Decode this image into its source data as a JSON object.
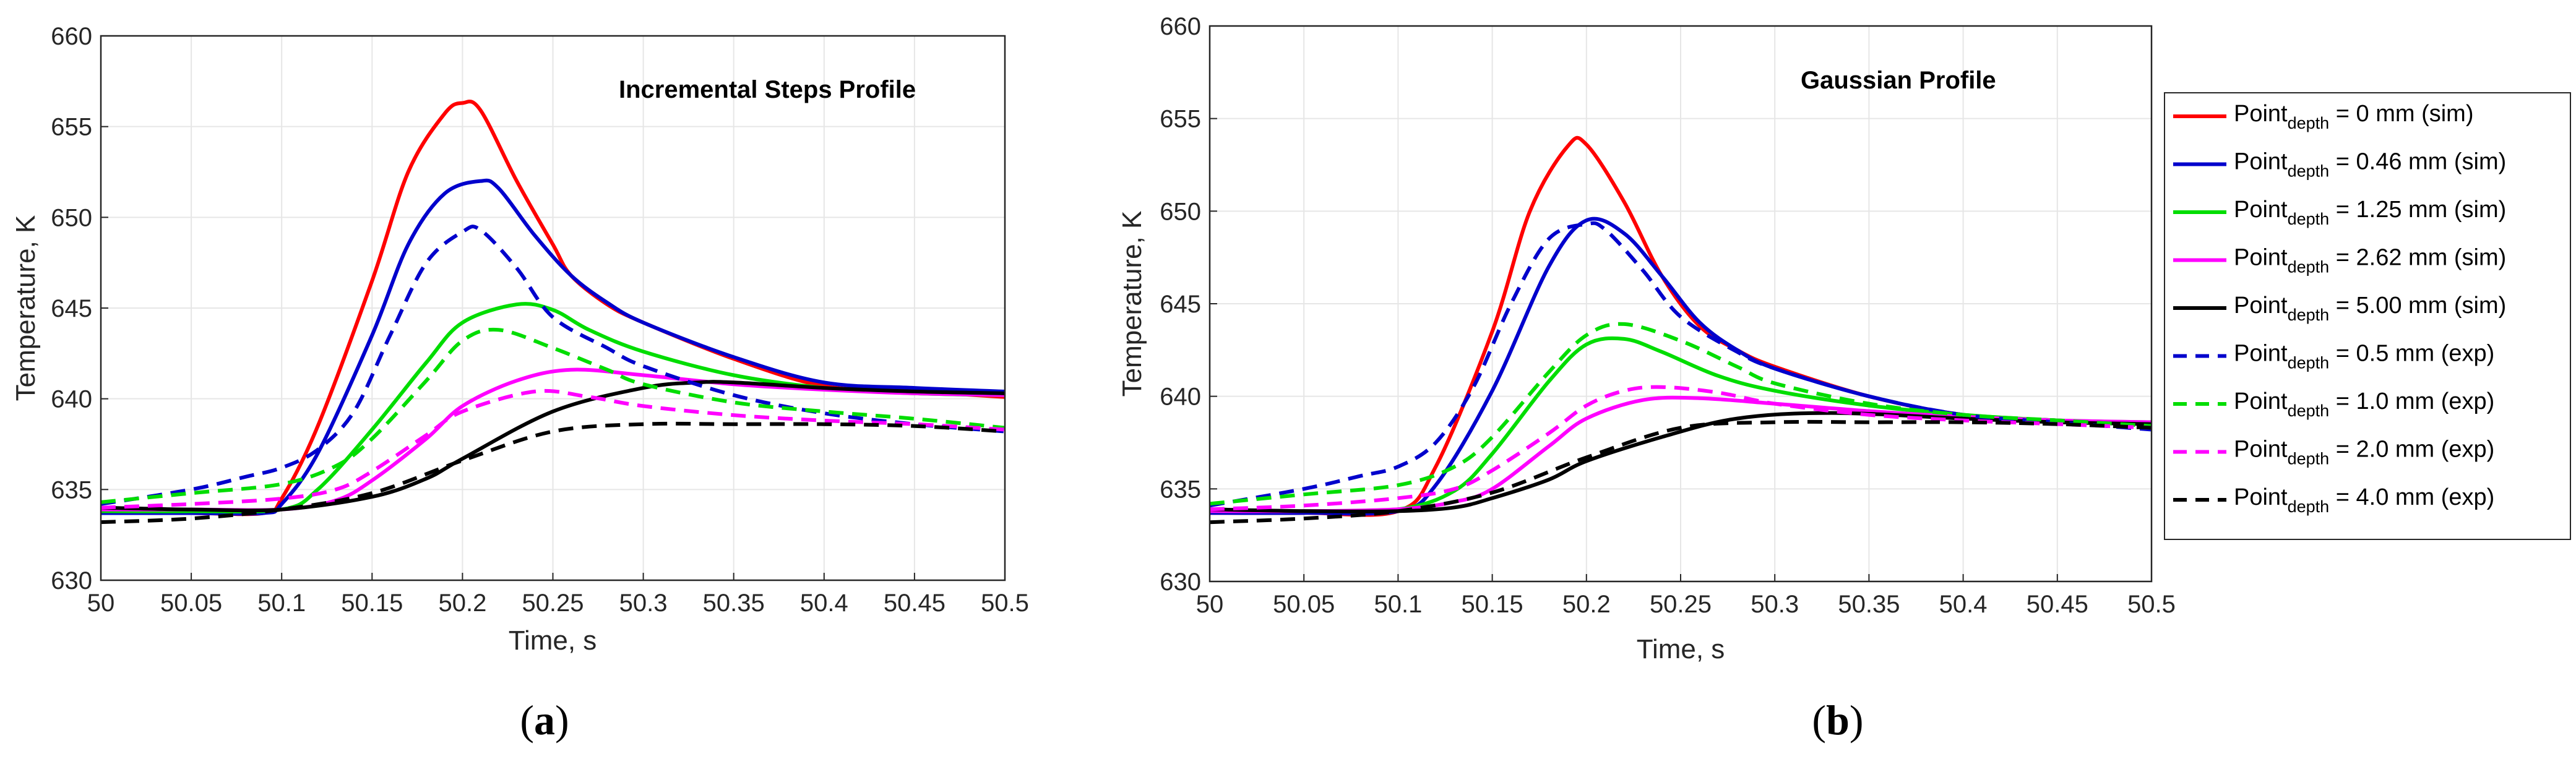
{
  "colors": {
    "red": "#ff0000",
    "blue": "#0000cc",
    "green": "#00dd00",
    "magenta": "#ff00ff",
    "black": "#000000",
    "grid": "#e6e6e6",
    "axis": "#262626"
  },
  "legend": {
    "prefix": "Point",
    "sub": "depth",
    "items": [
      {
        "suffix": " = 0 mm (sim)",
        "color": "#ff0000",
        "dash": false
      },
      {
        "suffix": " = 0.46 mm (sim)",
        "color": "#0000cc",
        "dash": false
      },
      {
        "suffix": " = 1.25 mm (sim)",
        "color": "#00dd00",
        "dash": false
      },
      {
        "suffix": " = 2.62 mm (sim)",
        "color": "#ff00ff",
        "dash": false
      },
      {
        "suffix": " = 5.00 mm (sim)",
        "color": "#000000",
        "dash": false
      },
      {
        "suffix": " = 0.5 mm (exp)",
        "color": "#0000cc",
        "dash": true
      },
      {
        "suffix": " = 1.0 mm (exp)",
        "color": "#00dd00",
        "dash": true
      },
      {
        "suffix": " = 2.0 mm (exp)",
        "color": "#ff00ff",
        "dash": true
      },
      {
        "suffix": " = 4.0 mm (exp)",
        "color": "#000000",
        "dash": true
      }
    ]
  },
  "chart_data": [
    {
      "type": "line",
      "panel": "a",
      "caption_open": "(",
      "caption_letter": "a",
      "caption_close": ")",
      "title": "Incremental Steps Profile",
      "xlabel": "Time, s",
      "ylabel": "Temperature, K",
      "xlim": [
        50,
        50.5
      ],
      "ylim": [
        630,
        660
      ],
      "xticks": [
        "50",
        "50.05",
        "50.1",
        "50.15",
        "50.2",
        "50.25",
        "50.3",
        "50.35",
        "50.4",
        "50.45",
        "50.5"
      ],
      "yticks": [
        "630",
        "635",
        "640",
        "645",
        "650",
        "655",
        "660"
      ],
      "grid": true,
      "series": [
        {
          "name": "Point_depth = 0 mm (sim)",
          "color": "#ff0000",
          "dash": false,
          "x": [
            50,
            50.05,
            50.09,
            50.1,
            50.12,
            50.15,
            50.17,
            50.19,
            50.2,
            50.21,
            50.23,
            50.25,
            50.26,
            50.28,
            50.3,
            50.35,
            50.4,
            50.45,
            50.5
          ],
          "y": [
            633.7,
            633.7,
            633.7,
            634.5,
            638.5,
            646.5,
            652.5,
            655.7,
            656.3,
            655.9,
            652,
            648.5,
            646.8,
            645.2,
            644.2,
            642.2,
            640.7,
            640.4,
            640.1
          ]
        },
        {
          "name": "Point_depth = 0.46 mm (sim)",
          "color": "#0000cc",
          "dash": false,
          "x": [
            50,
            50.05,
            50.09,
            50.1,
            50.12,
            50.15,
            50.17,
            50.19,
            50.21,
            50.22,
            50.24,
            50.26,
            50.28,
            50.3,
            50.35,
            50.4,
            50.45,
            50.5
          ],
          "y": [
            633.7,
            633.7,
            633.7,
            634.2,
            637,
            643.5,
            648.5,
            651.3,
            652,
            651.6,
            649,
            646.8,
            645.3,
            644.2,
            642.3,
            640.9,
            640.6,
            640.4
          ]
        },
        {
          "name": "Point_depth = 1.25 mm (sim)",
          "color": "#00dd00",
          "dash": false,
          "x": [
            50,
            50.05,
            50.1,
            50.12,
            50.15,
            50.18,
            50.2,
            50.23,
            50.25,
            50.27,
            50.3,
            50.35,
            50.4,
            50.45,
            50.5
          ],
          "y": [
            633.8,
            633.8,
            633.9,
            635,
            638.3,
            642,
            644.2,
            645.2,
            644.9,
            643.8,
            642.6,
            641.3,
            640.6,
            640.3,
            640.2
          ]
        },
        {
          "name": "Point_depth = 2.62 mm (sim)",
          "color": "#ff00ff",
          "dash": false,
          "x": [
            50,
            50.05,
            50.1,
            50.13,
            50.15,
            50.18,
            50.2,
            50.23,
            50.26,
            50.3,
            50.35,
            50.4,
            50.45,
            50.5
          ],
          "y": [
            633.9,
            633.9,
            633.9,
            634.4,
            635.5,
            637.8,
            639.6,
            641,
            641.6,
            641.3,
            640.8,
            640.5,
            640.3,
            640.2
          ]
        },
        {
          "name": "Point_depth = 5.00 mm (sim)",
          "color": "#000000",
          "dash": false,
          "x": [
            50,
            50.05,
            50.1,
            50.15,
            50.18,
            50.2,
            50.25,
            50.3,
            50.33,
            50.35,
            50.4,
            50.45,
            50.5
          ],
          "y": [
            634,
            633.9,
            633.9,
            634.6,
            635.6,
            636.7,
            639.3,
            640.6,
            640.9,
            640.9,
            640.6,
            640.4,
            640.3
          ]
        },
        {
          "name": "Point_depth = 0.5 mm (exp)",
          "color": "#0000cc",
          "dash": true,
          "x": [
            50,
            50.05,
            50.08,
            50.1,
            50.12,
            50.14,
            50.16,
            50.18,
            50.2,
            50.21,
            50.23,
            50.25,
            50.28,
            50.3,
            50.35,
            50.4,
            50.45,
            50.5
          ],
          "y": [
            634.2,
            635,
            635.7,
            636.2,
            637.2,
            639.3,
            643.5,
            647.5,
            649.2,
            649.3,
            647.2,
            644.5,
            642.8,
            641.8,
            640.2,
            639.2,
            638.6,
            638.2
          ]
        },
        {
          "name": "Point_depth = 1.0 mm (exp)",
          "color": "#00dd00",
          "dash": true,
          "x": [
            50,
            50.05,
            50.1,
            50.13,
            50.15,
            50.18,
            50.2,
            50.22,
            50.25,
            50.28,
            50.3,
            50.35,
            50.4,
            50.45,
            50.5
          ],
          "y": [
            634.3,
            634.8,
            635.3,
            636.3,
            637.8,
            641,
            643.2,
            643.8,
            642.8,
            641.6,
            640.8,
            639.8,
            639.3,
            638.9,
            638.4
          ]
        },
        {
          "name": "Point_depth = 2.0 mm (exp)",
          "color": "#ff00ff",
          "dash": true,
          "x": [
            50,
            50.05,
            50.1,
            50.13,
            50.15,
            50.18,
            50.2,
            50.24,
            50.27,
            50.3,
            50.35,
            50.4,
            50.45,
            50.5
          ],
          "y": [
            634,
            634.2,
            634.5,
            635,
            636,
            638,
            639.3,
            640.4,
            640.1,
            639.6,
            639.1,
            638.8,
            638.6,
            638.3
          ]
        },
        {
          "name": "Point_depth = 4.0 mm (exp)",
          "color": "#000000",
          "dash": true,
          "x": [
            50,
            50.05,
            50.1,
            50.15,
            50.2,
            50.25,
            50.3,
            50.35,
            50.4,
            50.45,
            50.5
          ],
          "y": [
            633.2,
            633.4,
            633.9,
            634.8,
            636.6,
            638.2,
            638.6,
            638.6,
            638.6,
            638.5,
            638.2
          ]
        }
      ]
    },
    {
      "type": "line",
      "panel": "b",
      "caption_open": "(",
      "caption_letter": "b",
      "caption_close": ")",
      "title": "Gaussian Profile",
      "xlabel": "Time, s",
      "ylabel": "Temperature, K",
      "xlim": [
        50,
        50.5
      ],
      "ylim": [
        630,
        660
      ],
      "xticks": [
        "50",
        "50.05",
        "50.1",
        "50.15",
        "50.2",
        "50.25",
        "50.3",
        "50.35",
        "50.4",
        "50.45",
        "50.5"
      ],
      "yticks": [
        "630",
        "635",
        "640",
        "645",
        "650",
        "655",
        "660"
      ],
      "grid": true,
      "series": [
        {
          "name": "Point_depth = 0 mm (sim)",
          "color": "#ff0000",
          "dash": false,
          "x": [
            50,
            50.05,
            50.1,
            50.12,
            50.15,
            50.17,
            50.19,
            50.2,
            50.22,
            50.24,
            50.26,
            50.28,
            50.3,
            50.35,
            50.4,
            50.45,
            50.5
          ],
          "y": [
            633.7,
            633.7,
            633.8,
            636.2,
            643.5,
            650,
            653.5,
            653.6,
            650.5,
            646.5,
            643.8,
            642.5,
            641.6,
            640,
            639,
            638.7,
            638.5
          ]
        },
        {
          "name": "Point_depth = 0.46 mm (sim)",
          "color": "#0000cc",
          "dash": false,
          "x": [
            50,
            50.05,
            50.1,
            50.12,
            50.15,
            50.18,
            50.2,
            50.22,
            50.24,
            50.26,
            50.28,
            50.3,
            50.35,
            50.4,
            50.45,
            50.5
          ],
          "y": [
            633.7,
            633.7,
            633.8,
            635.2,
            640.3,
            647,
            649.5,
            648.8,
            646.5,
            644,
            642.5,
            641.5,
            640,
            639,
            638.7,
            638.5
          ]
        },
        {
          "name": "Point_depth = 1.25 mm (sim)",
          "color": "#00dd00",
          "dash": false,
          "x": [
            50,
            50.05,
            50.1,
            50.13,
            50.15,
            50.18,
            50.2,
            50.22,
            50.24,
            50.27,
            50.3,
            50.35,
            50.4,
            50.45,
            50.5
          ],
          "y": [
            633.8,
            633.8,
            633.9,
            634.9,
            636.9,
            640.8,
            642.8,
            643.1,
            642.4,
            641.1,
            640.3,
            639.5,
            639,
            638.7,
            638.6
          ]
        },
        {
          "name": "Point_depth = 2.62 mm (sim)",
          "color": "#ff00ff",
          "dash": false,
          "x": [
            50,
            50.05,
            50.1,
            50.13,
            50.15,
            50.18,
            50.2,
            50.23,
            50.26,
            50.3,
            50.35,
            50.4,
            50.45,
            50.5
          ],
          "y": [
            633.8,
            633.8,
            633.9,
            634.3,
            635,
            637.3,
            638.8,
            639.8,
            639.9,
            639.6,
            639.2,
            638.9,
            638.7,
            638.6
          ]
        },
        {
          "name": "Point_depth = 5.00 mm (sim)",
          "color": "#000000",
          "dash": false,
          "x": [
            50,
            50.05,
            50.1,
            50.13,
            50.15,
            50.18,
            50.2,
            50.24,
            50.28,
            50.33,
            50.4,
            50.45,
            50.5
          ],
          "y": [
            633.9,
            633.8,
            633.8,
            634,
            634.5,
            635.5,
            636.5,
            637.8,
            638.8,
            639.1,
            638.8,
            638.6,
            638.5
          ]
        },
        {
          "name": "Point_depth = 0.5 mm (exp)",
          "color": "#0000cc",
          "dash": true,
          "x": [
            50,
            50.05,
            50.08,
            50.1,
            50.12,
            50.14,
            50.16,
            50.18,
            50.2,
            50.21,
            50.23,
            50.25,
            50.28,
            50.3,
            50.35,
            50.4,
            50.45,
            50.5
          ],
          "y": [
            634.1,
            635,
            635.7,
            636.2,
            637.5,
            640.5,
            645,
            648.5,
            649.3,
            649,
            646.8,
            644.3,
            642.4,
            641.5,
            640,
            639,
            638.6,
            638.2
          ]
        },
        {
          "name": "Point_depth = 1.0 mm (exp)",
          "color": "#00dd00",
          "dash": true,
          "x": [
            50,
            50.05,
            50.1,
            50.13,
            50.15,
            50.18,
            50.2,
            50.22,
            50.25,
            50.28,
            50.3,
            50.35,
            50.4,
            50.45,
            50.5
          ],
          "y": [
            634.2,
            634.7,
            635.2,
            636.2,
            637.8,
            641.3,
            643.3,
            643.9,
            643,
            641.6,
            640.7,
            639.6,
            639,
            638.7,
            638.4
          ]
        },
        {
          "name": "Point_depth = 2.0 mm (exp)",
          "color": "#ff00ff",
          "dash": true,
          "x": [
            50,
            50.05,
            50.1,
            50.13,
            50.15,
            50.18,
            50.2,
            50.22,
            50.24,
            50.27,
            50.3,
            50.35,
            50.4,
            50.45,
            50.5
          ],
          "y": [
            633.9,
            634.1,
            634.5,
            635,
            636,
            638,
            639.5,
            640.3,
            640.5,
            640.2,
            639.6,
            639,
            638.7,
            638.5,
            638.3
          ]
        },
        {
          "name": "Point_depth = 4.0 mm (exp)",
          "color": "#000000",
          "dash": true,
          "x": [
            50,
            50.05,
            50.1,
            50.15,
            50.2,
            50.25,
            50.3,
            50.35,
            50.4,
            50.45,
            50.5
          ],
          "y": [
            633.2,
            633.4,
            633.8,
            634.8,
            636.7,
            638.3,
            638.6,
            638.6,
            638.6,
            638.5,
            638.3
          ]
        }
      ]
    }
  ]
}
